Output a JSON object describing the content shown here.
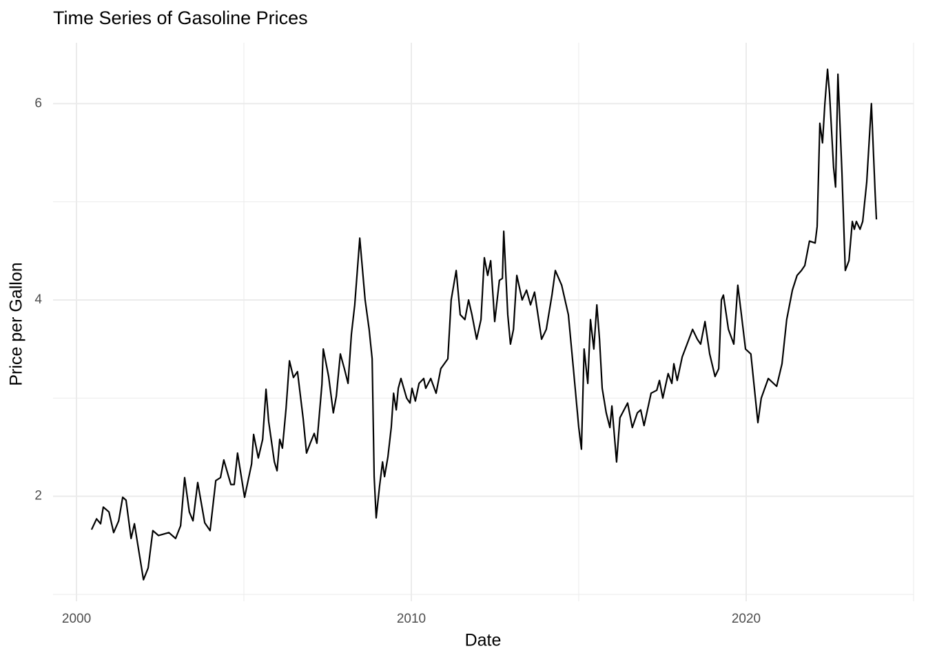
{
  "chart_data": {
    "type": "line",
    "title": "Time Series of Gasoline Prices",
    "x_label": "Date",
    "y_label": "Price per Gallon",
    "color": "#000000",
    "grid": true,
    "xlim": [
      1999.3,
      2025.0
    ],
    "ylim": [
      0.93,
      6.62
    ],
    "xticks": [
      2000,
      2010,
      2020
    ],
    "yticks": [
      2,
      4,
      6
    ],
    "x_minor_grid": [
      2005,
      2015,
      2025
    ],
    "y_minor_grid": [
      1,
      3,
      5
    ],
    "x": [
      2000.45,
      2000.6,
      2000.72,
      2000.8,
      2000.97,
      2001.11,
      2001.26,
      2001.38,
      2001.48,
      2001.63,
      2001.73,
      2002.0,
      2002.14,
      2002.28,
      2002.45,
      2002.76,
      2002.96,
      2003.11,
      2003.23,
      2003.37,
      2003.48,
      2003.62,
      2003.83,
      2003.99,
      2004.16,
      2004.3,
      2004.4,
      2004.61,
      2004.71,
      2004.81,
      2005.02,
      2005.23,
      2005.29,
      2005.43,
      2005.56,
      2005.66,
      2005.74,
      2005.91,
      2005.99,
      2006.07,
      2006.15,
      2006.26,
      2006.36,
      2006.48,
      2006.6,
      2006.77,
      2006.87,
      2006.98,
      2007.1,
      2007.18,
      2007.33,
      2007.37,
      2007.53,
      2007.67,
      2007.76,
      2007.88,
      2008.0,
      2008.11,
      2008.21,
      2008.31,
      2008.46,
      2008.62,
      2008.74,
      2008.83,
      2008.89,
      2008.95,
      2009.05,
      2009.14,
      2009.2,
      2009.3,
      2009.4,
      2009.47,
      2009.55,
      2009.61,
      2009.69,
      2009.86,
      2009.96,
      2010.02,
      2010.12,
      2010.23,
      2010.37,
      2010.43,
      2010.58,
      2010.74,
      2010.88,
      2011.09,
      2011.19,
      2011.34,
      2011.46,
      2011.6,
      2011.71,
      2011.81,
      2011.95,
      2012.08,
      2012.18,
      2012.28,
      2012.37,
      2012.49,
      2012.63,
      2012.72,
      2012.76,
      2012.88,
      2012.96,
      2013.05,
      2013.15,
      2013.31,
      2013.44,
      2013.56,
      2013.68,
      2013.89,
      2014.03,
      2014.2,
      2014.3,
      2014.49,
      2014.69,
      2014.84,
      2015.0,
      2015.08,
      2015.16,
      2015.27,
      2015.35,
      2015.45,
      2015.54,
      2015.62,
      2015.7,
      2015.82,
      2015.93,
      2015.99,
      2016.13,
      2016.23,
      2016.46,
      2016.6,
      2016.75,
      2016.85,
      2016.95,
      2017.16,
      2017.33,
      2017.41,
      2017.51,
      2017.67,
      2017.78,
      2017.84,
      2017.94,
      2018.09,
      2018.29,
      2018.4,
      2018.54,
      2018.64,
      2018.77,
      2018.91,
      2019.07,
      2019.18,
      2019.26,
      2019.32,
      2019.47,
      2019.63,
      2019.75,
      2019.84,
      2019.98,
      2020.14,
      2020.35,
      2020.45,
      2020.66,
      2020.91,
      2021.07,
      2021.21,
      2021.38,
      2021.52,
      2021.65,
      2021.75,
      2021.89,
      2022.06,
      2022.12,
      2022.2,
      2022.28,
      2022.35,
      2022.43,
      2022.49,
      2022.61,
      2022.67,
      2022.74,
      2022.86,
      2022.96,
      2023.07,
      2023.17,
      2023.23,
      2023.29,
      2023.4,
      2023.48,
      2023.6,
      2023.74,
      2023.85,
      2023.89
    ],
    "values": [
      1.66,
      1.77,
      1.72,
      1.89,
      1.84,
      1.63,
      1.75,
      1.99,
      1.96,
      1.57,
      1.72,
      1.15,
      1.27,
      1.65,
      1.6,
      1.63,
      1.57,
      1.7,
      2.19,
      1.84,
      1.75,
      2.14,
      1.73,
      1.65,
      2.16,
      2.19,
      2.37,
      2.12,
      2.12,
      2.44,
      1.99,
      2.33,
      2.63,
      2.39,
      2.58,
      3.09,
      2.76,
      2.35,
      2.26,
      2.58,
      2.49,
      2.9,
      3.38,
      3.21,
      3.27,
      2.79,
      2.44,
      2.54,
      2.64,
      2.54,
      3.14,
      3.5,
      3.22,
      2.85,
      3.02,
      3.45,
      3.3,
      3.15,
      3.65,
      3.95,
      4.63,
      4.0,
      3.7,
      3.4,
      2.2,
      1.78,
      2.1,
      2.35,
      2.2,
      2.4,
      2.7,
      3.05,
      2.88,
      3.1,
      3.2,
      3.0,
      2.95,
      3.1,
      2.97,
      3.15,
      3.2,
      3.1,
      3.2,
      3.05,
      3.3,
      3.4,
      4.0,
      4.3,
      3.85,
      3.8,
      4.0,
      3.85,
      3.6,
      3.8,
      4.43,
      4.25,
      4.4,
      3.78,
      4.2,
      4.22,
      4.7,
      3.85,
      3.55,
      3.7,
      4.25,
      4.0,
      4.1,
      3.95,
      4.08,
      3.6,
      3.7,
      4.05,
      4.3,
      4.15,
      3.85,
      3.3,
      2.7,
      2.48,
      3.5,
      3.15,
      3.8,
      3.5,
      3.95,
      3.6,
      3.1,
      2.85,
      2.7,
      2.92,
      2.35,
      2.8,
      2.95,
      2.7,
      2.85,
      2.88,
      2.72,
      3.05,
      3.08,
      3.18,
      3.0,
      3.25,
      3.15,
      3.35,
      3.18,
      3.42,
      3.6,
      3.7,
      3.6,
      3.55,
      3.78,
      3.45,
      3.22,
      3.3,
      4.0,
      4.05,
      3.7,
      3.55,
      4.15,
      3.9,
      3.5,
      3.45,
      2.75,
      3.0,
      3.2,
      3.12,
      3.35,
      3.8,
      4.1,
      4.25,
      4.3,
      4.35,
      4.6,
      4.58,
      4.75,
      5.8,
      5.6,
      6.0,
      6.35,
      6.1,
      5.35,
      5.15,
      6.3,
      5.3,
      4.3,
      4.4,
      4.8,
      4.72,
      4.8,
      4.72,
      4.8,
      5.2,
      6.0,
      5.1,
      4.82
    ]
  }
}
